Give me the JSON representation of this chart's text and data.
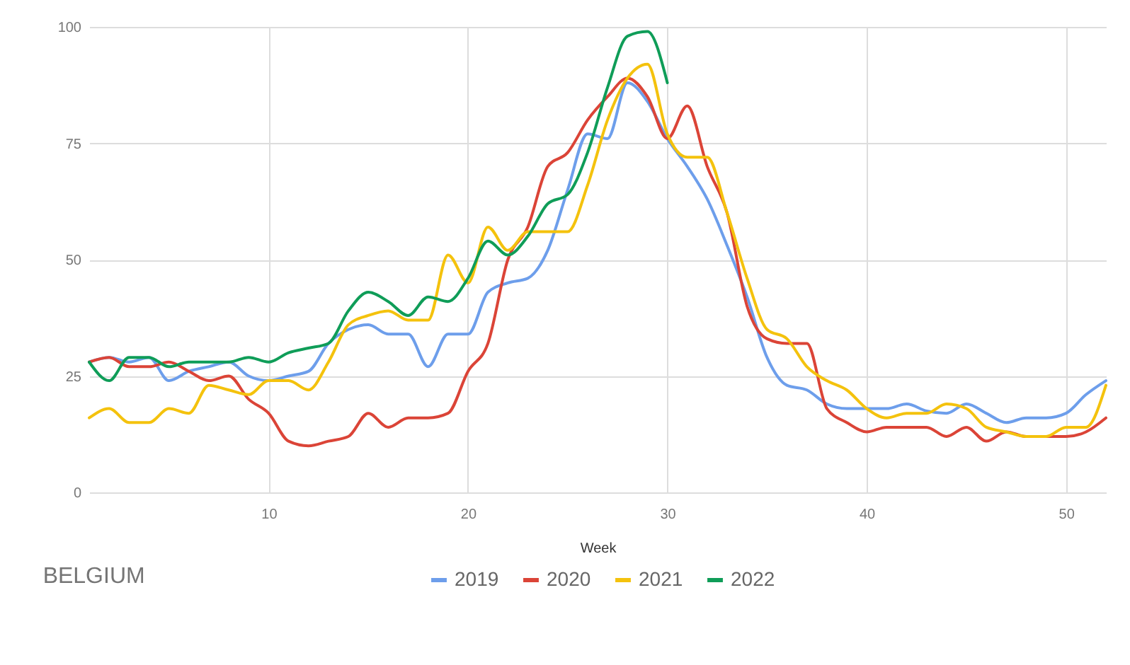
{
  "chart_data": {
    "type": "line",
    "title": "BELGIUM",
    "xlabel": "Week",
    "x": [
      1,
      2,
      3,
      4,
      5,
      6,
      7,
      8,
      9,
      10,
      11,
      12,
      13,
      14,
      15,
      16,
      17,
      18,
      19,
      20,
      21,
      22,
      23,
      24,
      25,
      26,
      27,
      28,
      29,
      30,
      31,
      32,
      33,
      34,
      35,
      36,
      37,
      38,
      39,
      40,
      41,
      42,
      43,
      44,
      45,
      46,
      47,
      48,
      49,
      50,
      51,
      52
    ],
    "xlim": [
      1,
      52
    ],
    "xticks": [
      10,
      20,
      30,
      40,
      50
    ],
    "ylim": [
      0,
      100
    ],
    "yticks": [
      0,
      25,
      50,
      75,
      100
    ],
    "grid": true,
    "legend": "bottom",
    "marker": "none",
    "line_style": "solid",
    "series": [
      {
        "name": "2019",
        "color": "#6d9eeb",
        "values": [
          28,
          29,
          28,
          29,
          24,
          26,
          27,
          28,
          25,
          24,
          25,
          26,
          32,
          35,
          36,
          34,
          34,
          27,
          34,
          34,
          43,
          45,
          46,
          52,
          65,
          77,
          76,
          88,
          84,
          76,
          70,
          63,
          53,
          42,
          29,
          23,
          22,
          19,
          18,
          18,
          18,
          19,
          17.5,
          17,
          19,
          17,
          15,
          16,
          16,
          17,
          21,
          24
        ]
      },
      {
        "name": "2020",
        "color": "#db4437",
        "values": [
          28,
          29,
          27,
          27,
          28,
          26,
          24,
          25,
          20,
          17,
          11,
          10,
          11,
          12,
          17,
          14,
          16,
          16,
          17,
          26,
          32,
          50,
          57,
          70,
          73,
          80,
          85,
          89,
          85,
          76,
          83,
          70,
          60,
          40,
          33,
          32,
          32,
          18,
          15,
          13,
          14,
          14,
          14,
          12,
          14,
          11,
          13,
          12,
          12,
          12,
          13,
          16
        ]
      },
      {
        "name": "2021",
        "color": "#f4c20d",
        "values": [
          16,
          18,
          15,
          15,
          18,
          17,
          23,
          22,
          21,
          24,
          24,
          22,
          28,
          36,
          38,
          39,
          37,
          37,
          51,
          45,
          57,
          52,
          56,
          56,
          56,
          66,
          80,
          89,
          92,
          77,
          72,
          72,
          60,
          46,
          35,
          33,
          27,
          24,
          22,
          18,
          16,
          17,
          17,
          19,
          18,
          14,
          13,
          12,
          12,
          14,
          14,
          23
        ]
      },
      {
        "name": "2022",
        "color": "#0f9d58",
        "x": [
          1,
          2,
          3,
          4,
          5,
          6,
          7,
          8,
          9,
          10,
          11,
          12,
          13,
          14,
          15,
          16,
          17,
          18,
          19,
          20,
          21,
          22,
          23,
          24,
          25,
          26,
          27,
          28,
          29,
          30
        ],
        "values": [
          28,
          24,
          29,
          29,
          27,
          28,
          28,
          28,
          29,
          28,
          30,
          31,
          32,
          39,
          43,
          41,
          38,
          42,
          41,
          46,
          54,
          51,
          55,
          62,
          64,
          73,
          87,
          98,
          99,
          88
        ]
      }
    ]
  }
}
